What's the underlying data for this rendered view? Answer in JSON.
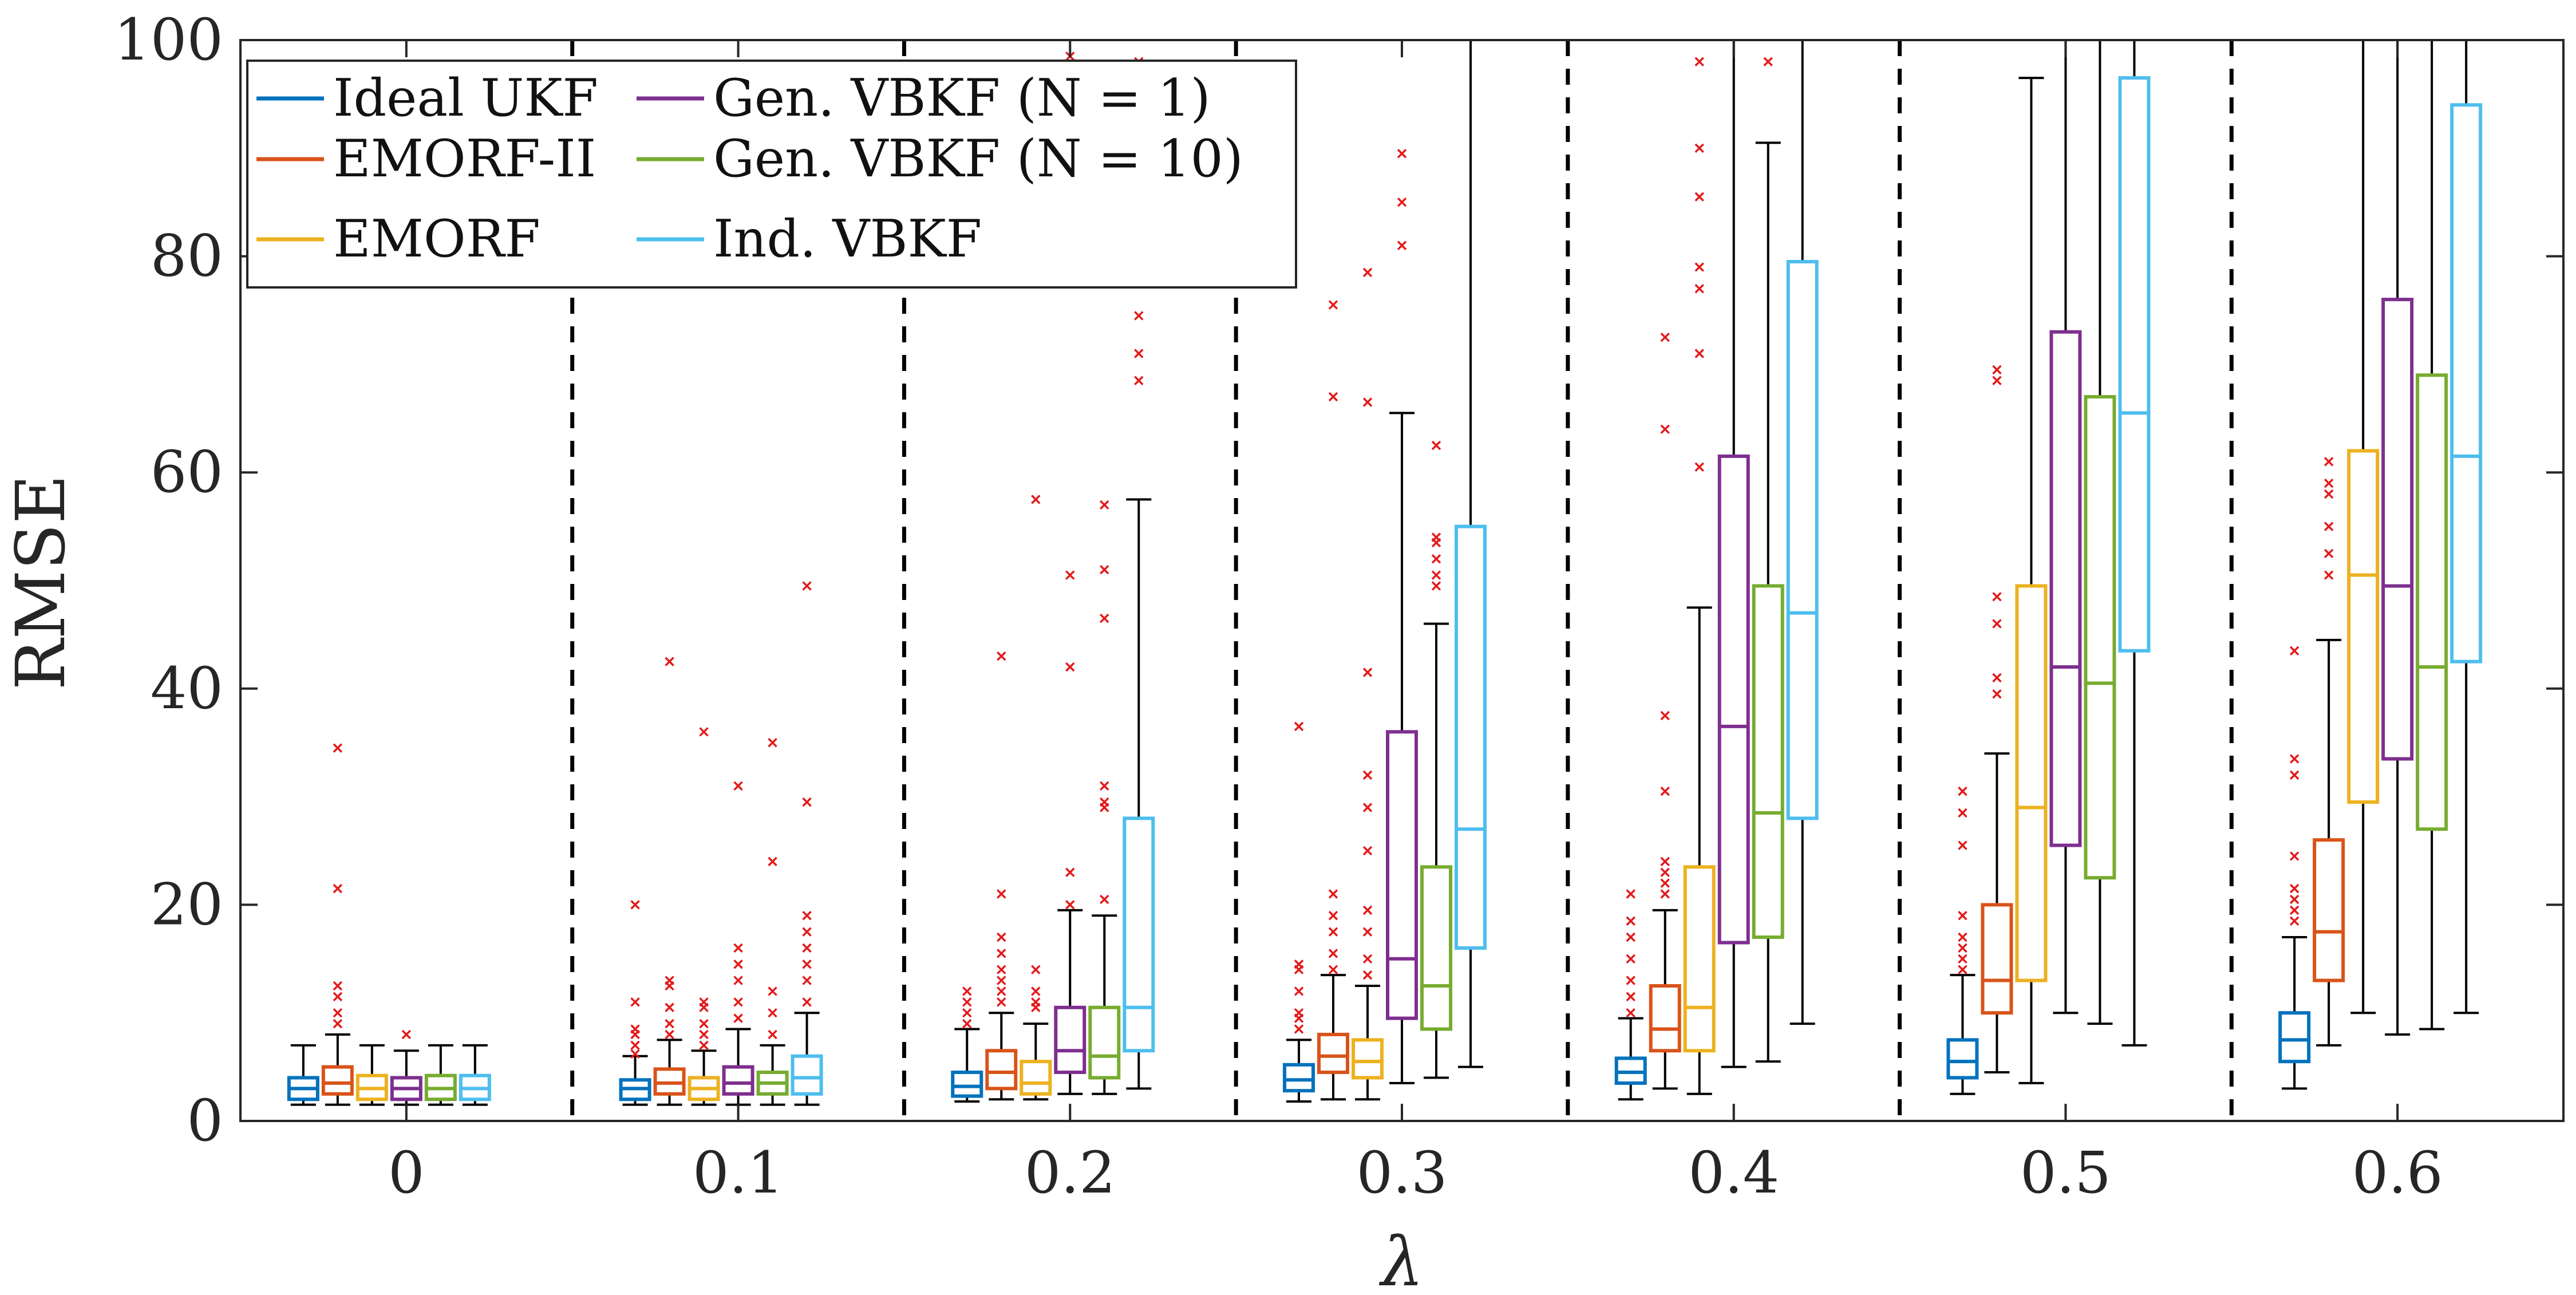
{
  "chart_data": {
    "type": "boxplot",
    "title": "",
    "xlabel": "λ",
    "ylabel": "RMSE",
    "ylim": [
      0,
      100
    ],
    "yticks": [
      0,
      20,
      40,
      60,
      80,
      100
    ],
    "categories": [
      "0",
      "0.1",
      "0.2",
      "0.3",
      "0.4",
      "0.5",
      "0.6"
    ],
    "group_separators": true,
    "legend_position": "top-left",
    "outlier_color": "#e41a1c",
    "series": [
      {
        "name": "Ideal UKF",
        "color": "#0072BD",
        "stats": [
          {
            "whisker_low": 1.5,
            "q1": 2.0,
            "median": 3.0,
            "q3": 4.0,
            "whisker_high": 7.0,
            "outliers": []
          },
          {
            "whisker_low": 1.5,
            "q1": 2.0,
            "median": 3.0,
            "q3": 3.8,
            "whisker_high": 6.0,
            "outliers": [
              6.2,
              7.0,
              8.0,
              8.5,
              11.0,
              20.0
            ]
          },
          {
            "whisker_low": 1.8,
            "q1": 2.3,
            "median": 3.2,
            "q3": 4.5,
            "whisker_high": 8.5,
            "outliers": [
              9.0,
              10.0,
              11.0,
              12.0
            ]
          },
          {
            "whisker_low": 1.8,
            "q1": 2.8,
            "median": 3.8,
            "q3": 5.2,
            "whisker_high": 7.5,
            "outliers": [
              8.5,
              9.5,
              10.0,
              12.0,
              14.0,
              14.5,
              36.5
            ]
          },
          {
            "whisker_low": 2.0,
            "q1": 3.5,
            "median": 4.5,
            "q3": 5.8,
            "whisker_high": 9.5,
            "outliers": [
              10.0,
              11.5,
              13.0,
              15.0,
              17.0,
              18.5,
              21.0
            ]
          },
          {
            "whisker_low": 2.5,
            "q1": 4.0,
            "median": 5.5,
            "q3": 7.5,
            "whisker_high": 13.5,
            "outliers": [
              14.0,
              15.0,
              16.0,
              17.0,
              19.0,
              25.5,
              28.5,
              30.5
            ]
          },
          {
            "whisker_low": 3.0,
            "q1": 5.5,
            "median": 7.5,
            "q3": 10.0,
            "whisker_high": 17.0,
            "outliers": [
              18.5,
              19.5,
              20.5,
              21.5,
              24.5,
              32.0,
              33.5,
              43.5
            ]
          }
        ]
      },
      {
        "name": "EMORF-II",
        "color": "#D95319",
        "stats": [
          {
            "whisker_low": 1.5,
            "q1": 2.5,
            "median": 3.5,
            "q3": 5.0,
            "whisker_high": 8.0,
            "outliers": [
              9.0,
              10.0,
              11.5,
              12.5,
              21.5,
              34.5
            ]
          },
          {
            "whisker_low": 1.5,
            "q1": 2.5,
            "median": 3.5,
            "q3": 4.8,
            "whisker_high": 7.5,
            "outliers": [
              8.0,
              9.0,
              10.5,
              12.5,
              13.0,
              42.5
            ]
          },
          {
            "whisker_low": 2.0,
            "q1": 3.0,
            "median": 4.5,
            "q3": 6.5,
            "whisker_high": 10.0,
            "outliers": [
              11.0,
              12.0,
              13.0,
              14.0,
              15.5,
              17.0,
              21.0,
              43.0
            ]
          },
          {
            "whisker_low": 2.0,
            "q1": 4.5,
            "median": 6.0,
            "q3": 8.0,
            "whisker_high": 13.5,
            "outliers": [
              14.0,
              15.5,
              17.5,
              19.0,
              21.0,
              67.0,
              75.5
            ]
          },
          {
            "whisker_low": 3.0,
            "q1": 6.5,
            "median": 8.5,
            "q3": 12.5,
            "whisker_high": 19.5,
            "outliers": [
              21.0,
              22.0,
              23.0,
              24.0,
              30.5,
              37.5,
              64.0,
              72.5
            ]
          },
          {
            "whisker_low": 4.5,
            "q1": 10.0,
            "median": 13.0,
            "q3": 20.0,
            "whisker_high": 34.0,
            "outliers": [
              39.5,
              41.0,
              46.0,
              48.5,
              68.5,
              69.5
            ]
          },
          {
            "whisker_low": 7.0,
            "q1": 13.0,
            "median": 17.5,
            "q3": 26.0,
            "whisker_high": 44.5,
            "outliers": [
              50.5,
              52.5,
              55.0,
              58.0,
              59.0,
              61.0
            ]
          }
        ]
      },
      {
        "name": "EMORF",
        "color": "#EDB120",
        "stats": [
          {
            "whisker_low": 1.5,
            "q1": 2.0,
            "median": 3.0,
            "q3": 4.2,
            "whisker_high": 7.0,
            "outliers": []
          },
          {
            "whisker_low": 1.5,
            "q1": 2.0,
            "median": 3.0,
            "q3": 4.0,
            "whisker_high": 6.5,
            "outliers": [
              7.0,
              8.0,
              9.0,
              10.5,
              11.0,
              36.0
            ]
          },
          {
            "whisker_low": 2.0,
            "q1": 2.5,
            "median": 3.5,
            "q3": 5.5,
            "whisker_high": 9.0,
            "outliers": [
              10.5,
              11.0,
              12.0,
              14.0,
              57.5
            ]
          },
          {
            "whisker_low": 2.0,
            "q1": 4.0,
            "median": 5.5,
            "q3": 7.5,
            "whisker_high": 12.5,
            "outliers": [
              13.5,
              15.0,
              17.5,
              19.5,
              25.0,
              29.0,
              32.0,
              41.5,
              66.5,
              78.5
            ]
          },
          {
            "whisker_low": 2.5,
            "q1": 6.5,
            "median": 10.5,
            "q3": 23.5,
            "whisker_high": 47.5,
            "outliers": [
              60.5,
              71.0,
              77.0,
              79.0,
              85.5,
              90.0,
              98.0
            ]
          },
          {
            "whisker_low": 3.5,
            "q1": 13.0,
            "median": 29.0,
            "q3": 49.5,
            "whisker_high": 96.5,
            "outliers": []
          },
          {
            "whisker_low": 10.0,
            "q1": 29.5,
            "median": 50.5,
            "q3": 62.0,
            "whisker_high": 100,
            "outliers": []
          }
        ]
      },
      {
        "name": "Gen. VBKF (N = 1)",
        "color": "#7E2F8E",
        "stats": [
          {
            "whisker_low": 1.5,
            "q1": 2.0,
            "median": 3.0,
            "q3": 4.0,
            "whisker_high": 6.5,
            "outliers": [
              8.0
            ]
          },
          {
            "whisker_low": 1.5,
            "q1": 2.5,
            "median": 3.5,
            "q3": 5.0,
            "whisker_high": 8.5,
            "outliers": [
              9.5,
              11.0,
              13.0,
              14.5,
              16.0,
              31.0
            ]
          },
          {
            "whisker_low": 2.5,
            "q1": 4.5,
            "median": 6.5,
            "q3": 10.5,
            "whisker_high": 19.5,
            "outliers": [
              20.0,
              23.0,
              42.0,
              50.5,
              98.5
            ]
          },
          {
            "whisker_low": 3.5,
            "q1": 9.5,
            "median": 15.0,
            "q3": 36.0,
            "whisker_high": 65.5,
            "outliers": [
              81.0,
              85.0,
              89.5
            ]
          },
          {
            "whisker_low": 5.0,
            "q1": 16.5,
            "median": 36.5,
            "q3": 61.5,
            "whisker_high": 100,
            "outliers": []
          },
          {
            "whisker_low": 10.0,
            "q1": 25.5,
            "median": 42.0,
            "q3": 73.0,
            "whisker_high": 100,
            "outliers": []
          },
          {
            "whisker_low": 8.0,
            "q1": 33.5,
            "median": 49.5,
            "q3": 76.0,
            "whisker_high": 100,
            "outliers": []
          }
        ]
      },
      {
        "name": "Gen. VBKF (N = 10)",
        "color": "#77AC30",
        "stats": [
          {
            "whisker_low": 1.5,
            "q1": 2.0,
            "median": 3.0,
            "q3": 4.2,
            "whisker_high": 7.0,
            "outliers": []
          },
          {
            "whisker_low": 1.5,
            "q1": 2.5,
            "median": 3.5,
            "q3": 4.5,
            "whisker_high": 7.0,
            "outliers": [
              8.0,
              10.0,
              12.0,
              24.0,
              35.0
            ]
          },
          {
            "whisker_low": 2.5,
            "q1": 4.0,
            "median": 6.0,
            "q3": 10.5,
            "whisker_high": 19.0,
            "outliers": [
              20.5,
              29.0,
              29.5,
              31.0,
              46.5,
              51.0,
              57.0
            ]
          },
          {
            "whisker_low": 4.0,
            "q1": 8.5,
            "median": 12.5,
            "q3": 23.5,
            "whisker_high": 46.0,
            "outliers": [
              49.5,
              50.5,
              52.0,
              53.5,
              54.0,
              62.5
            ]
          },
          {
            "whisker_low": 5.5,
            "q1": 17.0,
            "median": 28.5,
            "q3": 49.5,
            "whisker_high": 90.5,
            "outliers": [
              98.0
            ]
          },
          {
            "whisker_low": 9.0,
            "q1": 22.5,
            "median": 40.5,
            "q3": 67.0,
            "whisker_high": 100,
            "outliers": []
          },
          {
            "whisker_low": 8.5,
            "q1": 27.0,
            "median": 42.0,
            "q3": 69.0,
            "whisker_high": 100,
            "outliers": []
          }
        ]
      },
      {
        "name": "Ind. VBKF",
        "color": "#4DBEEE",
        "stats": [
          {
            "whisker_low": 1.5,
            "q1": 2.0,
            "median": 3.0,
            "q3": 4.2,
            "whisker_high": 7.0,
            "outliers": []
          },
          {
            "whisker_low": 1.5,
            "q1": 2.5,
            "median": 4.0,
            "q3": 6.0,
            "whisker_high": 10.0,
            "outliers": [
              11.0,
              13.0,
              14.5,
              16.0,
              17.5,
              19.0,
              29.5,
              49.5
            ]
          },
          {
            "whisker_low": 3.0,
            "q1": 6.5,
            "median": 10.5,
            "q3": 28.0,
            "whisker_high": 57.5,
            "outliers": [
              68.5,
              71.0,
              74.5,
              98.0
            ]
          },
          {
            "whisker_low": 5.0,
            "q1": 16.0,
            "median": 27.0,
            "q3": 55.0,
            "whisker_high": 100,
            "outliers": []
          },
          {
            "whisker_low": 9.0,
            "q1": 28.0,
            "median": 47.0,
            "q3": 79.5,
            "whisker_high": 100,
            "outliers": []
          },
          {
            "whisker_low": 7.0,
            "q1": 43.5,
            "median": 65.5,
            "q3": 96.5,
            "whisker_high": 100,
            "outliers": []
          },
          {
            "whisker_low": 10.0,
            "q1": 42.5,
            "median": 61.5,
            "q3": 94.0,
            "whisker_high": 100,
            "outliers": []
          }
        ]
      }
    ]
  }
}
